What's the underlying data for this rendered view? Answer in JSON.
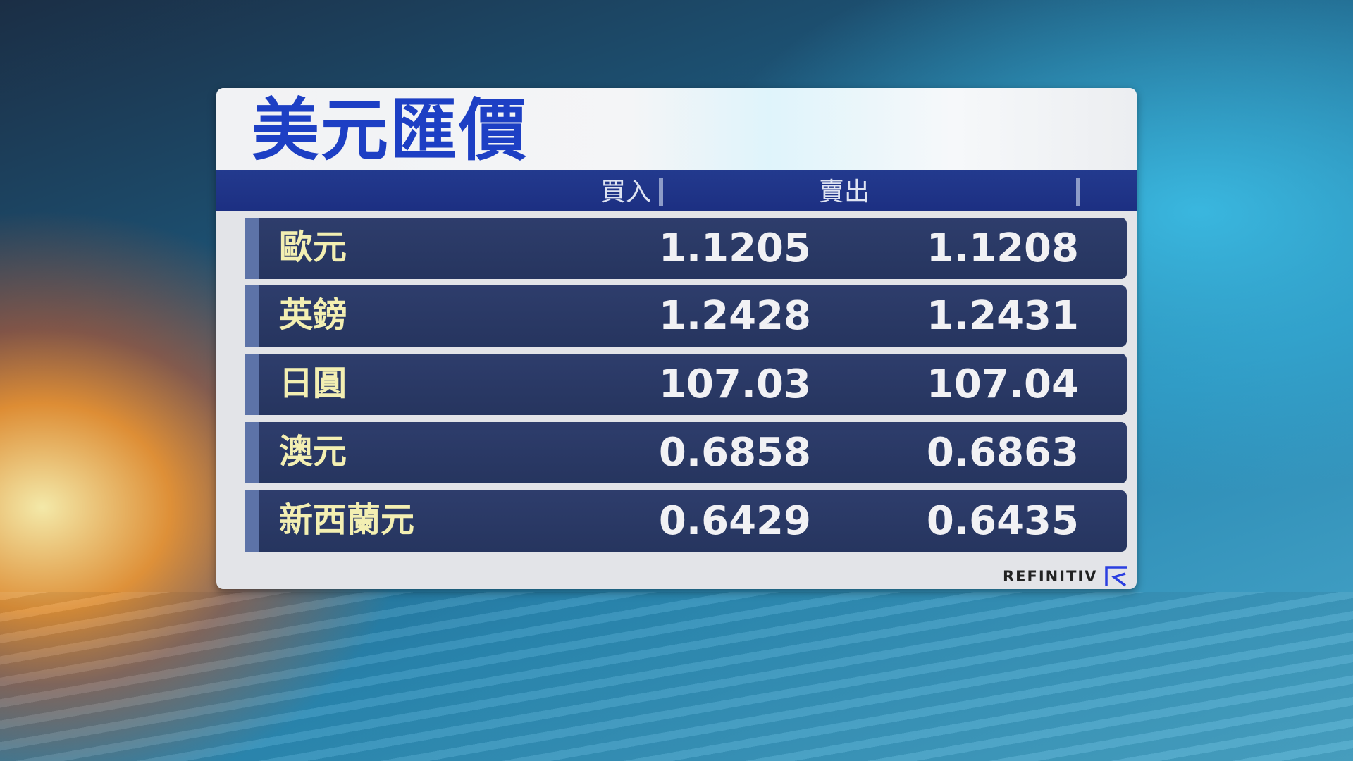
{
  "title": "美元匯價",
  "columns": {
    "buy": "買入",
    "sell": "賣出"
  },
  "rows": [
    {
      "currency": "歐元",
      "buy": "1.1205",
      "sell": "1.1208"
    },
    {
      "currency": "英鎊",
      "buy": "1.2428",
      "sell": "1.2431"
    },
    {
      "currency": "日圓",
      "buy": "107.03",
      "sell": "107.04"
    },
    {
      "currency": "澳元",
      "buy": "0.6858",
      "sell": "0.6863"
    },
    {
      "currency": "新西蘭元",
      "buy": "0.6429",
      "sell": "0.6435"
    }
  ],
  "source": {
    "name": "REFINITIV",
    "logo_icon": "refinitiv-logo-icon"
  },
  "colors": {
    "title": "#1d3fc4",
    "header": "#233a8e",
    "row": "#2a3966",
    "label": "#f3efb2"
  }
}
